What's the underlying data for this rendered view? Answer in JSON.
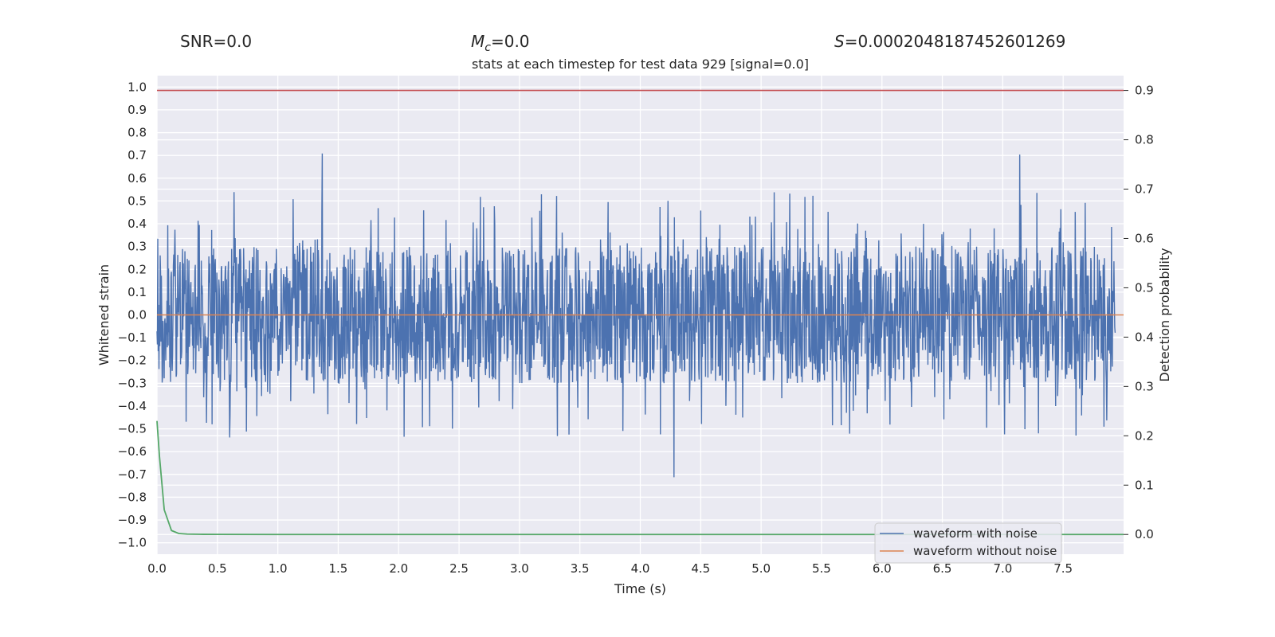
{
  "header": {
    "snr_label": "SNR=0.0",
    "mc_symbol": "M",
    "mc_sub": "c",
    "mc_value": "=0.0",
    "s_symbol": "S",
    "s_value": "=0.0002048187452601269"
  },
  "chart_data": {
    "type": "line",
    "title": "stats at each timestep for test data 929 [signal=0.0]",
    "xlabel": "Time (s)",
    "ylabel_left": "Whitened strain",
    "ylabel_right": "Detection probability",
    "xlim": [
      0.0,
      8.0
    ],
    "ylim_left": [
      -1.05,
      1.05
    ],
    "ylim_right": [
      -0.04,
      0.93
    ],
    "xticks": [
      "0.0",
      "0.5",
      "1.0",
      "1.5",
      "2.0",
      "2.5",
      "3.0",
      "3.5",
      "4.0",
      "4.5",
      "5.0",
      "5.5",
      "6.0",
      "6.5",
      "7.0",
      "7.5"
    ],
    "yticks_left": [
      "1.0",
      "0.9",
      "0.8",
      "0.7",
      "0.6",
      "0.5",
      "0.4",
      "0.3",
      "0.2",
      "0.1",
      "0.0",
      "-0.1",
      "-0.2",
      "-0.3",
      "-0.4",
      "-0.5",
      "-0.6",
      "-0.7",
      "-0.8",
      "-0.9",
      "-1.0"
    ],
    "yticks_right": [
      "0.9",
      "0.8",
      "0.7",
      "0.6",
      "0.5",
      "0.4",
      "0.3",
      "0.2",
      "0.1",
      "0.0"
    ],
    "threshold": {
      "axis": "right",
      "value": 0.9,
      "color": "#c44e52"
    },
    "series": [
      {
        "name": "waveform with noise",
        "axis": "left",
        "color": "#4c72b0",
        "noise_amplitude": 0.3,
        "peak_envelope": 0.97
      },
      {
        "name": "waveform without noise",
        "axis": "left",
        "color": "#dd8452",
        "x": [
          0.0,
          8.0
        ],
        "values": [
          0.0,
          0.0
        ]
      },
      {
        "name": "",
        "axis": "right",
        "color": "#55a868",
        "x": [
          0.0,
          0.02,
          0.06,
          0.12,
          0.18,
          0.25,
          0.35,
          0.5,
          1.0,
          8.0
        ],
        "values": [
          0.23,
          0.16,
          0.05,
          0.008,
          0.002,
          0.0008,
          0.0003,
          0.0001,
          0.0,
          0.0
        ]
      }
    ],
    "legend": {
      "location": "lower right",
      "entries": [
        "waveform with noise",
        "waveform without noise"
      ]
    },
    "background": "#eaeaf2",
    "grid": true
  }
}
